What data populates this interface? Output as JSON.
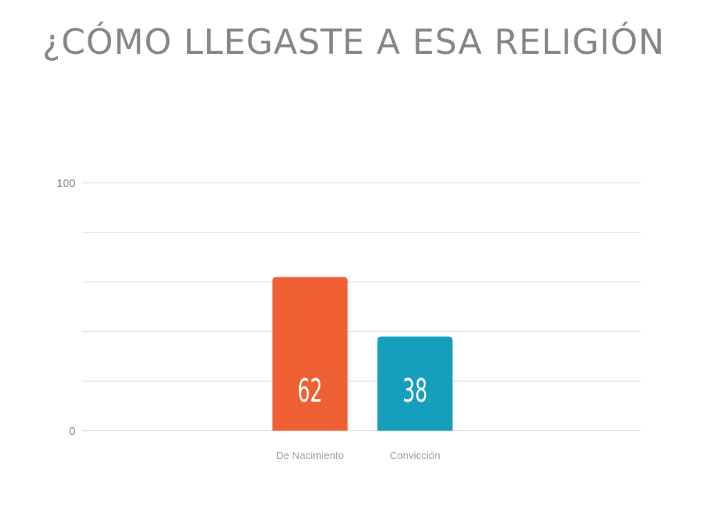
{
  "title": "¿CÓMO LLEGASTE A ESA RELIGIÓN",
  "chart_data": {
    "type": "bar",
    "categories": [
      "De Nacimiento",
      "Convicción"
    ],
    "values": [
      62,
      38
    ],
    "colors": [
      "#ef5f34",
      "#159fbd"
    ],
    "ylim": [
      0,
      100
    ],
    "y_tick_labels": [
      "0",
      "100"
    ],
    "gridlines": [
      0,
      20,
      40,
      60,
      80,
      100
    ],
    "grid": true,
    "data_labels": [
      "62",
      "38"
    ],
    "title": "¿CÓMO LLEGASTE A ESA RELIGIÓN",
    "xlabel": "",
    "ylabel": ""
  }
}
